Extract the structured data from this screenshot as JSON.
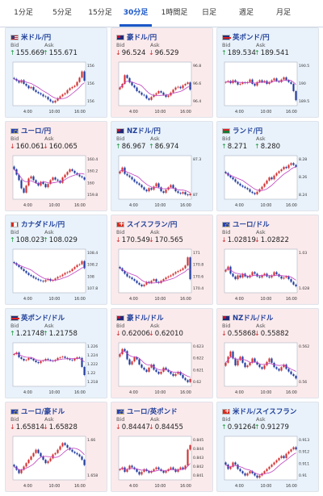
{
  "tabs": [
    {
      "label": "1分足",
      "active": false
    },
    {
      "label": "5分足",
      "active": false
    },
    {
      "label": "15分足",
      "active": false
    },
    {
      "label": "30分足",
      "active": true
    },
    {
      "label": "1時間足",
      "active": false
    },
    {
      "label": "日足",
      "active": false
    },
    {
      "label": "週足",
      "active": false
    },
    {
      "label": "月足",
      "active": false
    }
  ],
  "bid_label": "Bid",
  "ask_label": "Ask",
  "x_ticks": [
    "4:00",
    "10:00",
    "16:00"
  ],
  "colors": {
    "up_candle": "#d32f2f",
    "down_candle": "#1e3a9e",
    "ma": "#c040c0",
    "tab_active": "#1a56c8",
    "card_up_bg": "#e9f2fb",
    "card_down_bg": "#fbeaec"
  },
  "cards": [
    {
      "name": "米ドル/円",
      "flag": "us",
      "trend": "up",
      "bid": "155.669",
      "ask": "155.671",
      "chart_data": {
        "type": "candlestick",
        "ylim": [
          155.9,
          156.6
        ],
        "yticks": [
          "156",
          "156",
          "156"
        ],
        "closes": [
          156.33,
          156.3,
          156.27,
          156.31,
          156.25,
          156.22,
          156.18,
          156.2,
          156.15,
          156.12,
          156.1,
          156.08,
          156.05,
          156.04,
          156.0,
          155.97,
          155.95,
          155.98,
          156.02,
          156.05,
          156.08,
          156.1,
          156.15,
          156.18,
          156.2,
          156.22,
          156.28,
          156.35,
          156.45,
          156.3
        ]
      }
    },
    {
      "name": "豪ドル/円",
      "flag": "au",
      "trend": "down",
      "bid": "96.524",
      "ask": "96.529",
      "chart_data": {
        "type": "candlestick",
        "ylim": [
          96.3,
          96.9
        ],
        "yticks": [
          "96.8",
          "96.6",
          "96.4"
        ],
        "closes": [
          96.55,
          96.6,
          96.72,
          96.68,
          96.62,
          96.58,
          96.55,
          96.5,
          96.48,
          96.45,
          96.44,
          96.4,
          96.38,
          96.42,
          96.45,
          96.47,
          96.5,
          96.48,
          96.45,
          96.42,
          96.44,
          96.48,
          96.52,
          96.55,
          96.56,
          96.54,
          96.58,
          96.6,
          96.62,
          96.52
        ]
      }
    },
    {
      "name": "英ポンド/円",
      "flag": "gb",
      "trend": "up",
      "bid": "189.534",
      "ask": "189.541",
      "chart_data": {
        "type": "candlestick",
        "ylim": [
          189.4,
          190.6
        ],
        "yticks": [
          "190.5",
          "190",
          "189.5"
        ],
        "closes": [
          190.05,
          190.08,
          190.02,
          190.1,
          190.05,
          189.98,
          190.0,
          190.04,
          190.02,
          190.05,
          190.12,
          190.0,
          189.95,
          190.05,
          190.1,
          190.05,
          190.08,
          190.0,
          190.05,
          190.1,
          190.15,
          190.08,
          190.05,
          190.12,
          190.18,
          190.1,
          190.05,
          190.0,
          189.8,
          189.55
        ]
      }
    },
    {
      "name": "ユーロ/円",
      "flag": "eu",
      "trend": "down",
      "bid": "160.061",
      "ask": "160.065",
      "chart_data": {
        "type": "candlestick",
        "ylim": [
          159.7,
          160.5
        ],
        "yticks": [
          "160.4",
          "160.2",
          "160",
          "159.8"
        ],
        "closes": [
          160.25,
          160.15,
          160.05,
          159.9,
          159.82,
          159.95,
          160.08,
          160.12,
          160.05,
          160.0,
          159.95,
          160.02,
          159.98,
          159.92,
          159.98,
          160.05,
          160.1,
          160.06,
          160.04,
          160.0,
          160.1,
          160.15,
          160.2,
          160.25,
          160.22,
          160.18,
          160.15,
          160.12,
          160.1,
          160.06
        ]
      }
    },
    {
      "name": "NZドル/円",
      "flag": "nz",
      "trend": "up",
      "bid": "86.967",
      "ask": "86.974",
      "chart_data": {
        "type": "candlestick",
        "ylim": [
          86.9,
          87.45
        ],
        "yticks": [
          "87.3",
          "87"
        ],
        "closes": [
          87.25,
          87.3,
          87.22,
          87.2,
          87.18,
          87.15,
          87.12,
          87.1,
          87.08,
          87.05,
          87.02,
          87.0,
          87.04,
          87.02,
          87.06,
          87.1,
          87.05,
          87.0,
          86.98,
          87.02,
          87.05,
          87.08,
          87.04,
          87.0,
          86.98,
          86.97,
          86.99,
          86.96,
          86.95,
          86.97
        ]
      }
    },
    {
      "name": "ランド/円",
      "flag": "za",
      "trend": "up",
      "bid": "8.271",
      "ask": "8.280",
      "chart_data": {
        "type": "candlestick",
        "ylim": [
          8.22,
          8.29
        ],
        "yticks": [
          "8.28",
          "8.26",
          "8.24"
        ],
        "closes": [
          8.262,
          8.258,
          8.255,
          8.252,
          8.248,
          8.245,
          8.242,
          8.24,
          8.238,
          8.236,
          8.232,
          8.23,
          8.228,
          8.232,
          8.236,
          8.24,
          8.245,
          8.25,
          8.255,
          8.252,
          8.258,
          8.262,
          8.265,
          8.268,
          8.272,
          8.27,
          8.275,
          8.278,
          8.275,
          8.272
        ]
      }
    },
    {
      "name": "カナダドル/円",
      "flag": "ca",
      "trend": "up",
      "bid": "108.023",
      "ask": "108.029",
      "chart_data": {
        "type": "candlestick",
        "ylim": [
          107.4,
          108.5
        ],
        "yticks": [
          "108.4",
          "108.2",
          "108",
          "107.8"
        ],
        "closes": [
          108.15,
          108.1,
          108.05,
          108.0,
          107.95,
          107.9,
          107.85,
          107.82,
          107.78,
          107.75,
          107.72,
          107.7,
          107.68,
          107.72,
          107.75,
          107.7,
          107.72,
          107.76,
          107.8,
          107.82,
          107.86,
          107.9,
          107.92,
          107.95,
          108.0,
          108.05,
          108.1,
          108.12,
          108.2,
          108.02
        ]
      }
    },
    {
      "name": "スイスフラン/円",
      "flag": "ch",
      "trend": "down",
      "bid": "170.549",
      "ask": "170.565",
      "chart_data": {
        "type": "candlestick",
        "ylim": [
          170.3,
          171.1
        ],
        "yticks": [
          "171",
          "170.8",
          "170.6",
          "170.4"
        ],
        "closes": [
          170.75,
          170.7,
          170.65,
          170.6,
          170.58,
          170.55,
          170.52,
          170.48,
          170.45,
          170.42,
          170.45,
          170.5,
          170.48,
          170.52,
          170.55,
          170.5,
          170.48,
          170.52,
          170.55,
          170.58,
          170.6,
          170.62,
          170.65,
          170.68,
          170.7,
          170.72,
          170.75,
          170.8,
          170.95,
          170.55
        ]
      }
    },
    {
      "name": "ユーロ/ドル",
      "flag": "eu",
      "trend": "down",
      "bid": "1.02819",
      "ask": "1.02822",
      "chart_data": {
        "type": "candlestick",
        "ylim": [
          1.027,
          1.035
        ],
        "yticks": [
          "1.03",
          "1.028"
        ],
        "closes": [
          1.0312,
          1.0318,
          1.0305,
          1.03,
          1.0295,
          1.0302,
          1.0298,
          1.0305,
          1.03,
          1.0298,
          1.0302,
          1.0308,
          1.0305,
          1.03,
          1.0298,
          1.0302,
          1.0305,
          1.03,
          1.0298,
          1.0302,
          1.0308,
          1.0304,
          1.03,
          1.0296,
          1.0298,
          1.03,
          1.0295,
          1.029,
          1.0285,
          1.0282
        ]
      }
    },
    {
      "name": "英ポンド/ドル",
      "flag": "gb",
      "trend": "up",
      "bid": "1.21748",
      "ask": "1.21758",
      "chart_data": {
        "type": "candlestick",
        "ylim": [
          1.214,
          1.2275
        ],
        "yticks": [
          "1.226",
          "1.224",
          "1.222",
          "1.22",
          "1.218"
        ],
        "closes": [
          1.224,
          1.2245,
          1.223,
          1.2225,
          1.222,
          1.2222,
          1.2228,
          1.2225,
          1.222,
          1.2215,
          1.2212,
          1.2218,
          1.222,
          1.2225,
          1.2222,
          1.222,
          1.2218,
          1.2222,
          1.2228,
          1.223,
          1.2232,
          1.2228,
          1.2225,
          1.2222,
          1.222,
          1.2225,
          1.223,
          1.2228,
          1.22,
          1.2175
        ]
      }
    },
    {
      "name": "豪ドル/ドル",
      "flag": "au",
      "trend": "down",
      "bid": "0.62006",
      "ask": "0.62010",
      "chart_data": {
        "type": "candlestick",
        "ylim": [
          0.6194,
          0.6236
        ],
        "yticks": [
          "0.623",
          "0.622",
          "0.621",
          "0.62"
        ],
        "closes": [
          0.6225,
          0.623,
          0.6228,
          0.622,
          0.6215,
          0.6218,
          0.6222,
          0.622,
          0.6215,
          0.6212,
          0.621,
          0.6208,
          0.6212,
          0.6215,
          0.621,
          0.6208,
          0.6206,
          0.6208,
          0.6212,
          0.621,
          0.6208,
          0.6206,
          0.6204,
          0.6206,
          0.6208,
          0.6205,
          0.6202,
          0.62,
          0.6198,
          0.6201
        ]
      }
    },
    {
      "name": "NZドル/ドル",
      "flag": "nz",
      "trend": "down",
      "bid": "0.55868",
      "ask": "0.55882",
      "chart_data": {
        "type": "candlestick",
        "ylim": [
          0.5578,
          0.5628
        ],
        "yticks": [
          "0.562",
          "0.56"
        ],
        "closes": [
          0.5605,
          0.5612,
          0.5618,
          0.561,
          0.5602,
          0.5608,
          0.5612,
          0.5605,
          0.56,
          0.5602,
          0.5605,
          0.561,
          0.5606,
          0.5603,
          0.56,
          0.5598,
          0.5602,
          0.5606,
          0.561,
          0.5605,
          0.56,
          0.5598,
          0.5596,
          0.56,
          0.5603,
          0.5598,
          0.5595,
          0.5592,
          0.559,
          0.5587
        ]
      }
    },
    {
      "name": "ユーロ/豪ドル",
      "flag": "eu",
      "trend": "down",
      "bid": "1.65814",
      "ask": "1.65828",
      "chart_data": {
        "type": "candlestick",
        "ylim": [
          1.656,
          1.6625
        ],
        "yticks": [
          "1.66",
          "1.658"
        ],
        "closes": [
          1.658,
          1.6575,
          1.657,
          1.6575,
          1.658,
          1.6585,
          1.659,
          1.6595,
          1.66,
          1.6605,
          1.66,
          1.6595,
          1.659,
          1.6585,
          1.6588,
          1.6592,
          1.6598,
          1.66,
          1.6605,
          1.661,
          1.6615,
          1.6612,
          1.6608,
          1.6605,
          1.6602,
          1.66,
          1.6598,
          1.6595,
          1.659,
          1.6582
        ]
      }
    },
    {
      "name": "ユーロ/英ポンド",
      "flag": "eu",
      "trend": "down",
      "bid": "0.84447",
      "ask": "0.84455",
      "chart_data": {
        "type": "candlestick",
        "ylim": [
          0.8406,
          0.8455
        ],
        "yticks": [
          "0.845",
          "0.844",
          "0.843",
          "0.842",
          "0.841"
        ],
        "closes": [
          0.8418,
          0.842,
          0.8415,
          0.8418,
          0.8422,
          0.842,
          0.8418,
          0.8415,
          0.8412,
          0.8415,
          0.8418,
          0.8416,
          0.8414,
          0.8416,
          0.8418,
          0.842,
          0.8418,
          0.8416,
          0.8414,
          0.8416,
          0.8418,
          0.842,
          0.8418,
          0.8415,
          0.8418,
          0.842,
          0.8418,
          0.8422,
          0.844,
          0.8445
        ]
      }
    },
    {
      "name": "米ドル/スイスフラン",
      "flag": "ch",
      "trend": "up",
      "bid": "0.91264",
      "ask": "0.91279",
      "chart_data": {
        "type": "candlestick",
        "ylim": [
          0.9098,
          0.9138
        ],
        "yticks": [
          "0.913",
          "0.912",
          "0.911",
          "0.91"
        ],
        "closes": [
          0.9112,
          0.9108,
          0.911,
          0.9114,
          0.9112,
          0.9108,
          0.9106,
          0.9104,
          0.9102,
          0.9104,
          0.9106,
          0.9104,
          0.9102,
          0.91,
          0.9102,
          0.9104,
          0.9106,
          0.9108,
          0.911,
          0.9112,
          0.9114,
          0.9116,
          0.9118,
          0.912,
          0.9118,
          0.9122,
          0.9124,
          0.9126,
          0.9128,
          0.9126
        ]
      }
    }
  ]
}
